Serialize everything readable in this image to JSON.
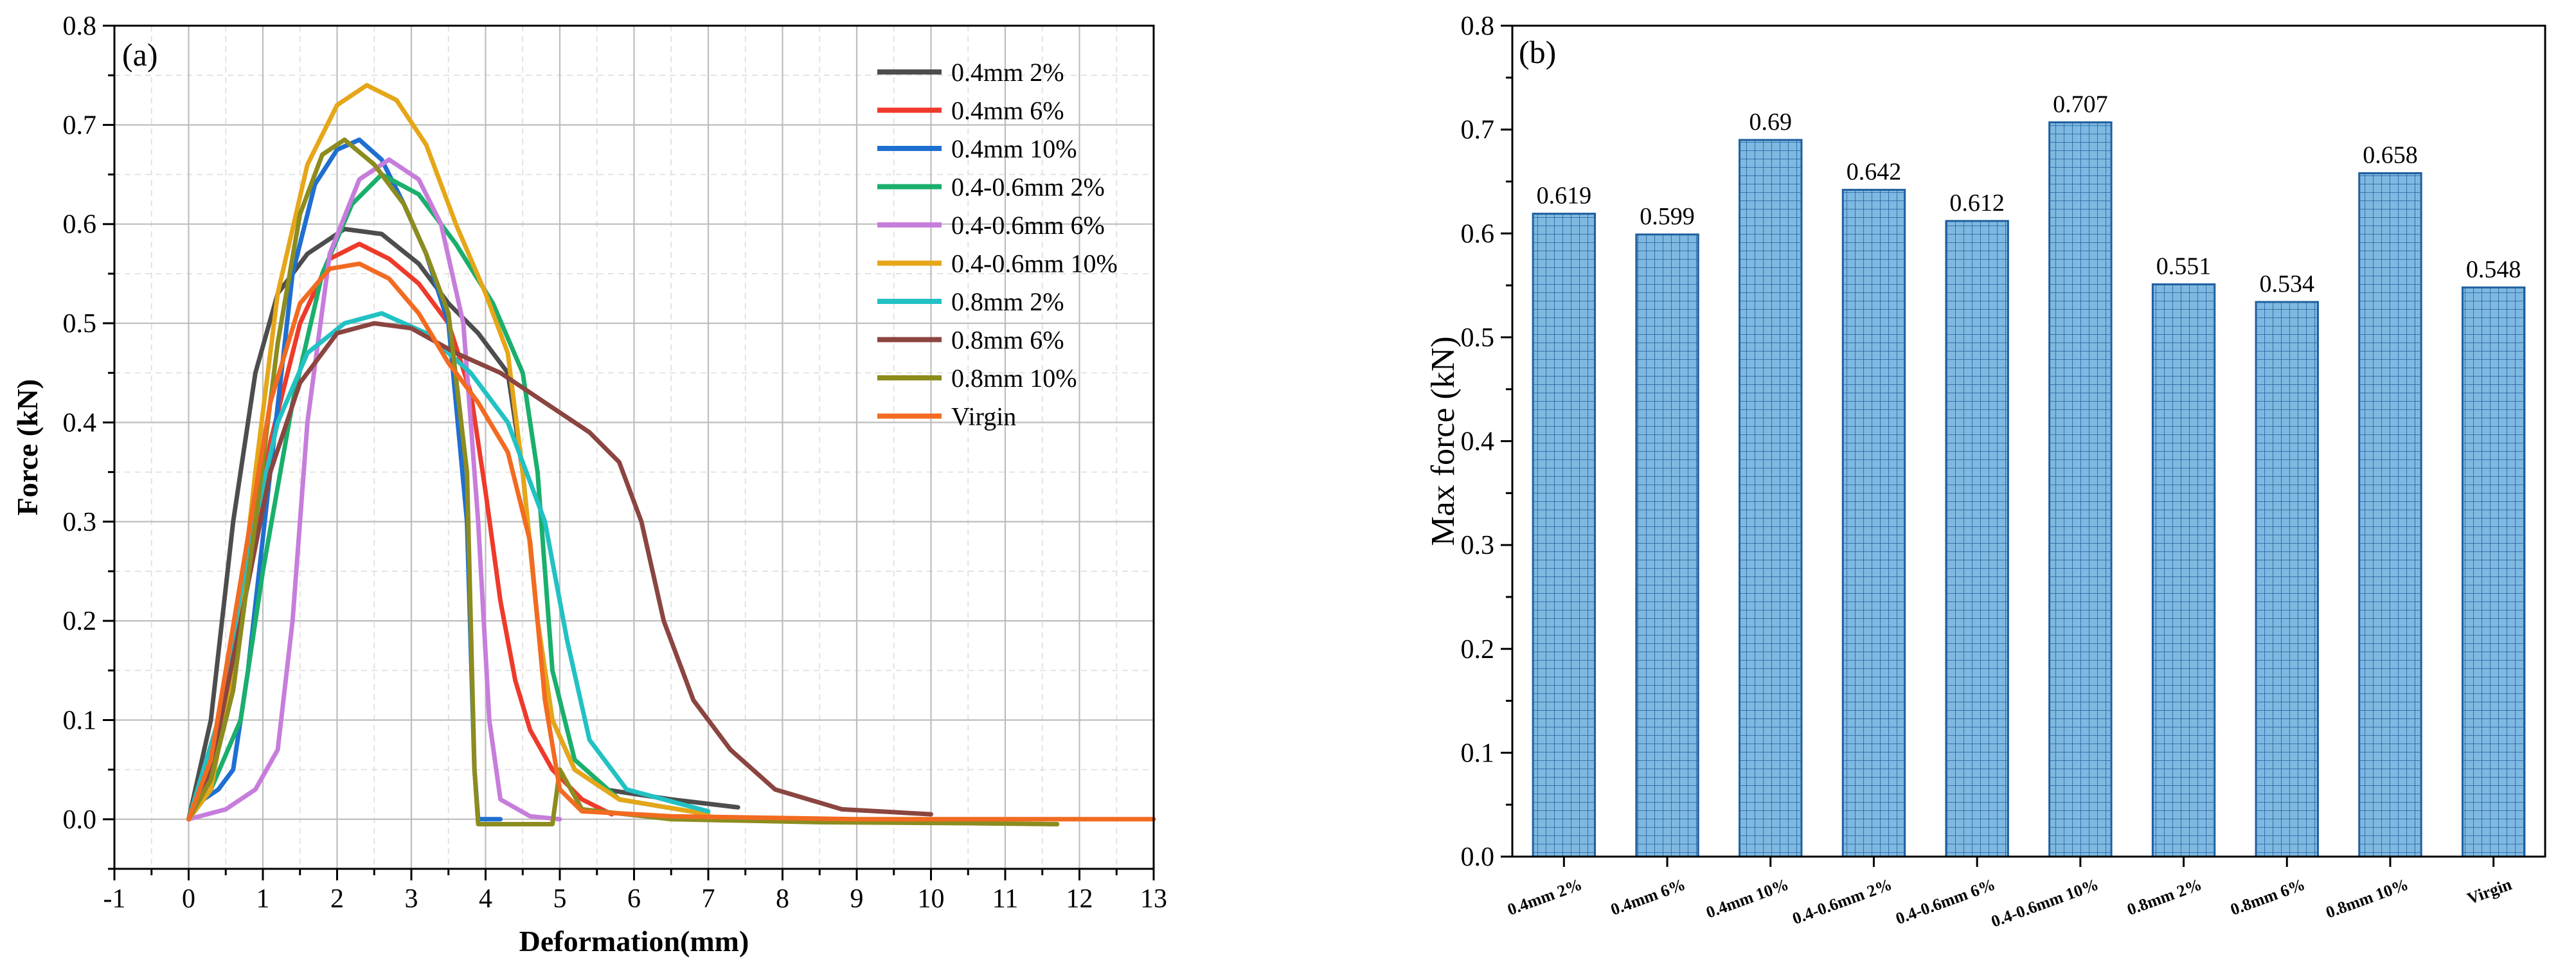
{
  "chart_data": [
    {
      "type": "line",
      "panel_label": "(a)",
      "xlabel": "Deformation(mm)",
      "ylabel": "Force (kN)",
      "xlim": [
        -1,
        13
      ],
      "ylim": [
        -0.05,
        0.8
      ],
      "x_ticks": [
        -1,
        0,
        1,
        2,
        3,
        4,
        5,
        6,
        7,
        8,
        9,
        10,
        11,
        12,
        13
      ],
      "y_ticks": [
        0.0,
        0.1,
        0.2,
        0.3,
        0.4,
        0.5,
        0.6,
        0.7,
        0.8
      ],
      "x_tick_labels": [
        "-1",
        "0",
        "1",
        "2",
        "3",
        "4",
        "5",
        "6",
        "7",
        "8",
        "9",
        "10",
        "11",
        "12",
        "13"
      ],
      "y_tick_labels": [
        "0.0",
        "0.1",
        "0.2",
        "0.3",
        "0.4",
        "0.5",
        "0.6",
        "0.7",
        "0.8"
      ],
      "grid": true,
      "legend_position": "top-right",
      "series": [
        {
          "name": "0.4mm 2%",
          "color": "#4d4d4d",
          "points": [
            [
              0,
              0
            ],
            [
              0.3,
              0.1
            ],
            [
              0.6,
              0.3
            ],
            [
              0.9,
              0.45
            ],
            [
              1.2,
              0.53
            ],
            [
              1.6,
              0.57
            ],
            [
              2.1,
              0.595
            ],
            [
              2.6,
              0.59
            ],
            [
              3.1,
              0.56
            ],
            [
              3.5,
              0.52
            ],
            [
              3.9,
              0.49
            ],
            [
              4.3,
              0.45
            ],
            [
              4.5,
              0.35
            ],
            [
              4.7,
              0.2
            ],
            [
              4.9,
              0.1
            ],
            [
              5.2,
              0.05
            ],
            [
              5.6,
              0.03
            ],
            [
              6.5,
              0.02
            ],
            [
              7.4,
              0.012
            ]
          ]
        },
        {
          "name": "0.4mm 6%",
          "color": "#ee3a2b",
          "points": [
            [
              0,
              0
            ],
            [
              0.3,
              0.05
            ],
            [
              0.7,
              0.2
            ],
            [
              1.1,
              0.38
            ],
            [
              1.5,
              0.5
            ],
            [
              1.9,
              0.565
            ],
            [
              2.3,
              0.58
            ],
            [
              2.7,
              0.565
            ],
            [
              3.1,
              0.54
            ],
            [
              3.5,
              0.5
            ],
            [
              3.8,
              0.43
            ],
            [
              4.0,
              0.33
            ],
            [
              4.2,
              0.22
            ],
            [
              4.4,
              0.14
            ],
            [
              4.6,
              0.09
            ],
            [
              4.9,
              0.05
            ],
            [
              5.3,
              0.02
            ],
            [
              5.7,
              0.005
            ]
          ]
        },
        {
          "name": "0.4mm 10%",
          "color": "#1f6fd1",
          "points": [
            [
              0,
              0
            ],
            [
              0.2,
              0.02
            ],
            [
              0.4,
              0.03
            ],
            [
              0.6,
              0.05
            ],
            [
              0.8,
              0.15
            ],
            [
              1.1,
              0.35
            ],
            [
              1.4,
              0.55
            ],
            [
              1.7,
              0.64
            ],
            [
              2.0,
              0.675
            ],
            [
              2.3,
              0.685
            ],
            [
              2.6,
              0.665
            ],
            [
              2.9,
              0.62
            ],
            [
              3.2,
              0.57
            ],
            [
              3.5,
              0.5
            ],
            [
              3.75,
              0.3
            ],
            [
              3.85,
              0.05
            ],
            [
              3.9,
              0.0
            ],
            [
              4.2,
              0.0
            ]
          ]
        },
        {
          "name": "0.4-0.6mm 2%",
          "color": "#1aaf6c",
          "points": [
            [
              0,
              0
            ],
            [
              0.3,
              0.03
            ],
            [
              0.7,
              0.1
            ],
            [
              1.0,
              0.25
            ],
            [
              1.4,
              0.42
            ],
            [
              1.8,
              0.55
            ],
            [
              2.2,
              0.62
            ],
            [
              2.6,
              0.65
            ],
            [
              3.1,
              0.63
            ],
            [
              3.6,
              0.58
            ],
            [
              4.1,
              0.52
            ],
            [
              4.5,
              0.45
            ],
            [
              4.7,
              0.35
            ],
            [
              4.9,
              0.15
            ],
            [
              5.2,
              0.06
            ],
            [
              5.8,
              0.02
            ],
            [
              7.0,
              0.005
            ]
          ]
        },
        {
          "name": "0.4-0.6mm 6%",
          "color": "#c77ddb",
          "points": [
            [
              0,
              0
            ],
            [
              0.5,
              0.01
            ],
            [
              0.9,
              0.03
            ],
            [
              1.2,
              0.07
            ],
            [
              1.4,
              0.2
            ],
            [
              1.6,
              0.4
            ],
            [
              1.9,
              0.57
            ],
            [
              2.3,
              0.645
            ],
            [
              2.7,
              0.665
            ],
            [
              3.1,
              0.645
            ],
            [
              3.4,
              0.6
            ],
            [
              3.7,
              0.5
            ],
            [
              3.9,
              0.3
            ],
            [
              4.05,
              0.1
            ],
            [
              4.2,
              0.02
            ],
            [
              4.6,
              0.003
            ],
            [
              5.0,
              0.0
            ]
          ]
        },
        {
          "name": "0.4-0.6mm 10%",
          "color": "#e5a618",
          "points": [
            [
              0,
              0
            ],
            [
              0.3,
              0.03
            ],
            [
              0.6,
              0.15
            ],
            [
              0.9,
              0.35
            ],
            [
              1.2,
              0.53
            ],
            [
              1.6,
              0.66
            ],
            [
              2.0,
              0.72
            ],
            [
              2.4,
              0.74
            ],
            [
              2.8,
              0.725
            ],
            [
              3.2,
              0.68
            ],
            [
              3.6,
              0.6
            ],
            [
              4.0,
              0.53
            ],
            [
              4.3,
              0.47
            ],
            [
              4.5,
              0.35
            ],
            [
              4.7,
              0.2
            ],
            [
              4.9,
              0.1
            ],
            [
              5.2,
              0.05
            ],
            [
              5.8,
              0.02
            ],
            [
              7.0,
              0.005
            ]
          ]
        },
        {
          "name": "0.8mm 2%",
          "color": "#22c1c3",
          "points": [
            [
              0,
              0
            ],
            [
              0.4,
              0.1
            ],
            [
              0.8,
              0.27
            ],
            [
              1.2,
              0.4
            ],
            [
              1.6,
              0.47
            ],
            [
              2.1,
              0.5
            ],
            [
              2.6,
              0.51
            ],
            [
              3.2,
              0.49
            ],
            [
              3.8,
              0.45
            ],
            [
              4.3,
              0.4
            ],
            [
              4.8,
              0.3
            ],
            [
              5.1,
              0.18
            ],
            [
              5.4,
              0.08
            ],
            [
              5.9,
              0.03
            ],
            [
              7.0,
              0.008
            ]
          ]
        },
        {
          "name": "0.8mm 6%",
          "color": "#8b4540",
          "points": [
            [
              0,
              0
            ],
            [
              0.3,
              0.05
            ],
            [
              0.7,
              0.2
            ],
            [
              1.1,
              0.35
            ],
            [
              1.5,
              0.44
            ],
            [
              2.0,
              0.49
            ],
            [
              2.5,
              0.5
            ],
            [
              3.0,
              0.495
            ],
            [
              3.6,
              0.47
            ],
            [
              4.2,
              0.45
            ],
            [
              4.8,
              0.42
            ],
            [
              5.4,
              0.39
            ],
            [
              5.8,
              0.36
            ],
            [
              6.1,
              0.3
            ],
            [
              6.4,
              0.2
            ],
            [
              6.8,
              0.12
            ],
            [
              7.3,
              0.07
            ],
            [
              7.9,
              0.03
            ],
            [
              8.8,
              0.01
            ],
            [
              10.0,
              0.005
            ]
          ]
        },
        {
          "name": "0.8mm 10%",
          "color": "#8c8c1f",
          "points": [
            [
              0,
              0
            ],
            [
              0.3,
              0.04
            ],
            [
              0.6,
              0.13
            ],
            [
              0.9,
              0.3
            ],
            [
              1.2,
              0.48
            ],
            [
              1.5,
              0.61
            ],
            [
              1.8,
              0.67
            ],
            [
              2.1,
              0.685
            ],
            [
              2.5,
              0.66
            ],
            [
              2.9,
              0.62
            ],
            [
              3.2,
              0.57
            ],
            [
              3.5,
              0.51
            ],
            [
              3.75,
              0.35
            ],
            [
              3.85,
              0.05
            ],
            [
              3.9,
              -0.005
            ],
            [
              4.9,
              -0.005
            ],
            [
              5.0,
              0.05
            ],
            [
              5.3,
              0.01
            ],
            [
              6.5,
              0.0
            ],
            [
              8.5,
              -0.003
            ],
            [
              10.5,
              -0.004
            ],
            [
              11.7,
              -0.005
            ]
          ]
        },
        {
          "name": "Virgin",
          "color": "#f26b21",
          "points": [
            [
              0,
              0
            ],
            [
              0.3,
              0.06
            ],
            [
              0.7,
              0.24
            ],
            [
              1.1,
              0.42
            ],
            [
              1.5,
              0.52
            ],
            [
              1.9,
              0.555
            ],
            [
              2.3,
              0.56
            ],
            [
              2.7,
              0.545
            ],
            [
              3.1,
              0.51
            ],
            [
              3.5,
              0.46
            ],
            [
              3.9,
              0.42
            ],
            [
              4.3,
              0.37
            ],
            [
              4.6,
              0.28
            ],
            [
              4.8,
              0.12
            ],
            [
              5.0,
              0.03
            ],
            [
              5.3,
              0.008
            ],
            [
              6.5,
              0.003
            ],
            [
              9.0,
              0.0
            ],
            [
              13.0,
              0.0
            ]
          ]
        }
      ]
    },
    {
      "type": "bar",
      "panel_label": "(b)",
      "xlabel": "",
      "ylabel": "Max force (kN)",
      "ylim": [
        0,
        0.8
      ],
      "y_ticks": [
        0.0,
        0.1,
        0.2,
        0.3,
        0.4,
        0.5,
        0.6,
        0.7,
        0.8
      ],
      "y_tick_labels": [
        "0.0",
        "0.1",
        "0.2",
        "0.3",
        "0.4",
        "0.5",
        "0.6",
        "0.7",
        "0.8"
      ],
      "bar_color": "#7fb8e0",
      "bar_edge_color": "#1f5f9e",
      "categories": [
        "0.4mm 2%",
        "0.4mm 6%",
        "0.4mm 10%",
        "0.4-0.6mm 2%",
        "0.4-0.6mm 6%",
        "0.4-0.6mm 10%",
        "0.8mm 2%",
        "0.8mm 6%",
        "0.8mm 10%",
        "Virgin"
      ],
      "values": [
        0.619,
        0.599,
        0.69,
        0.642,
        0.612,
        0.707,
        0.551,
        0.534,
        0.658,
        0.548
      ],
      "value_labels": [
        "0.619",
        "0.599",
        "0.69",
        "0.642",
        "0.612",
        "0.707",
        "0.551",
        "0.534",
        "0.658",
        "0.548"
      ]
    }
  ]
}
